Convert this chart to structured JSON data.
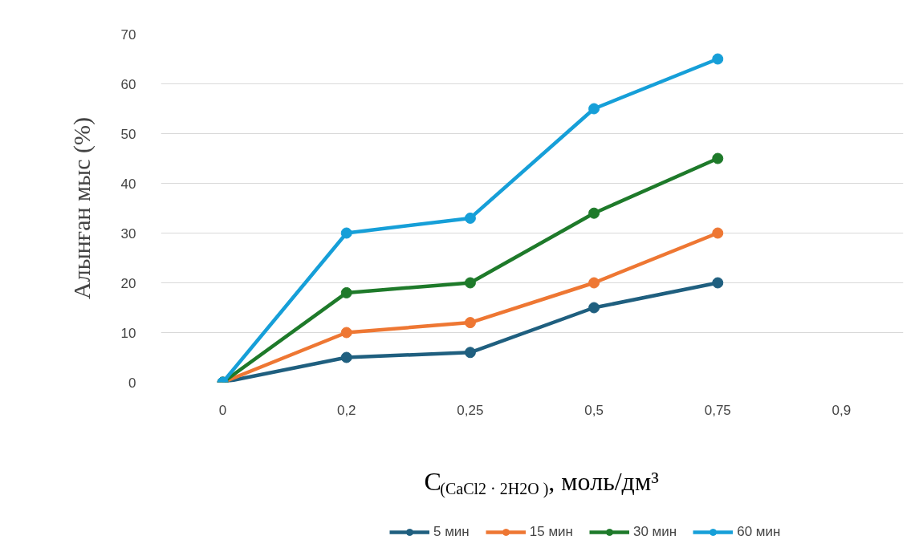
{
  "chart_data": {
    "type": "line",
    "xlabel": "C$_{(CaCl2 · 2H2O )}$, моль/дм³",
    "ylabel": "Алынған мыс (%)",
    "categories": [
      "0",
      "0,2",
      "0,25",
      "0,5",
      "0,75",
      "0,9"
    ],
    "series": [
      {
        "name": "5 мин",
        "color": "#1f5f7f",
        "values": [
          0,
          5,
          6,
          15,
          20,
          null
        ]
      },
      {
        "name": "15 мин",
        "color": "#ee7733",
        "values": [
          0,
          10,
          12,
          20,
          30,
          null
        ]
      },
      {
        "name": "30 мин",
        "color": "#1e7a2a",
        "values": [
          0,
          18,
          20,
          34,
          45,
          null
        ]
      },
      {
        "name": "60 мин",
        "color": "#169fd8",
        "values": [
          0,
          30,
          33,
          55,
          65,
          null
        ]
      }
    ],
    "ylim": [
      0,
      70
    ],
    "yticks": [
      0,
      10,
      20,
      30,
      40,
      50,
      60,
      70
    ],
    "grid": "y",
    "legend": "bottom",
    "marker": "circle",
    "line_style": "solid"
  }
}
